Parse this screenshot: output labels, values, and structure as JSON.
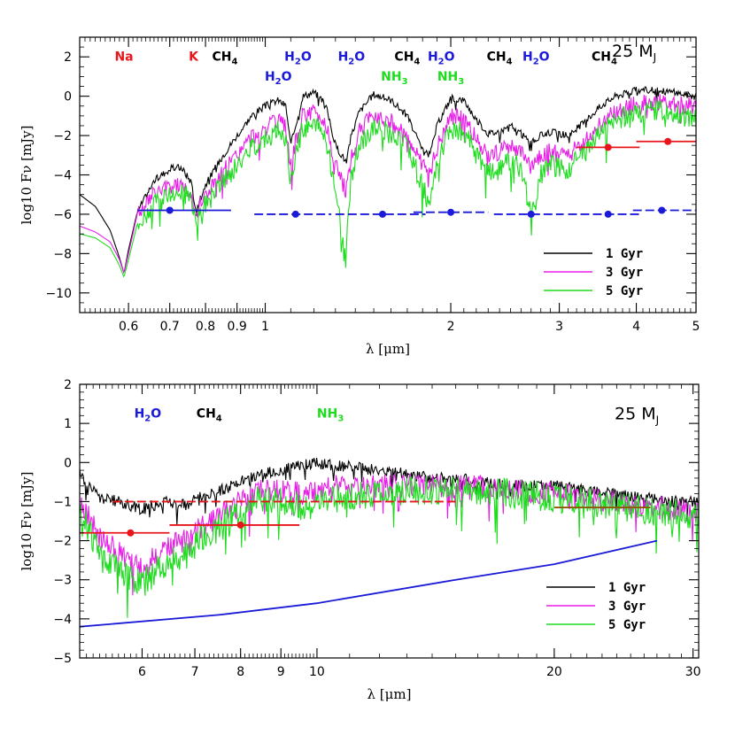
{
  "chart_data": [
    {
      "type": "line",
      "panel": "top",
      "xlabel": "λ [μm]",
      "ylabel": "log10 Fν [mJy]",
      "xscale": "log",
      "xlim": [
        0.5,
        5.0
      ],
      "ylim": [
        -11,
        3
      ],
      "x_ticks": [
        0.6,
        0.7,
        0.8,
        0.9,
        1,
        2,
        3,
        4,
        5
      ],
      "x_tick_labels": [
        "0.6",
        "0.7",
        "0.8",
        "0.9",
        "1",
        "2",
        "3",
        "4",
        "5"
      ],
      "y_ticks": [
        -10,
        -8,
        -6,
        -4,
        -2,
        0,
        2
      ],
      "y_tick_labels": [
        "−10",
        "−8",
        "−6",
        "−4",
        "−2",
        "0",
        "2"
      ],
      "mass_label": "25 M",
      "mass_sub": "J",
      "species": [
        {
          "text": "Na",
          "sub": "",
          "x": 0.59,
          "y": 1.8,
          "color": "#e8151a"
        },
        {
          "text": "K",
          "sub": "",
          "x": 0.765,
          "y": 1.8,
          "color": "#e8151a"
        },
        {
          "text": "CH",
          "sub": "4",
          "x": 0.86,
          "y": 1.8,
          "color": "#000000"
        },
        {
          "text": "H",
          "sub": "2",
          "tail": "O",
          "x": 1.05,
          "y": 0.8,
          "color": "#1a1ad8"
        },
        {
          "text": "H",
          "sub": "2",
          "tail": "O",
          "x": 1.13,
          "y": 1.8,
          "color": "#1a1ad8"
        },
        {
          "text": "H",
          "sub": "2",
          "tail": "O",
          "x": 1.38,
          "y": 1.8,
          "color": "#1a1ad8"
        },
        {
          "text": "NH",
          "sub": "3",
          "x": 1.62,
          "y": 0.8,
          "color": "#1edc1e"
        },
        {
          "text": "CH",
          "sub": "4",
          "x": 1.7,
          "y": 1.8,
          "color": "#000000"
        },
        {
          "text": "H",
          "sub": "2",
          "tail": "O",
          "x": 1.93,
          "y": 1.8,
          "color": "#1a1ad8"
        },
        {
          "text": "NH",
          "sub": "3",
          "x": 2.0,
          "y": 0.8,
          "color": "#1edc1e"
        },
        {
          "text": "CH",
          "sub": "4",
          "x": 2.4,
          "y": 1.8,
          "color": "#000000"
        },
        {
          "text": "H",
          "sub": "2",
          "tail": "O",
          "x": 2.75,
          "y": 1.8,
          "color": "#1a1ad8"
        },
        {
          "text": "CH",
          "sub": "4",
          "x": 3.55,
          "y": 1.8,
          "color": "#000000"
        }
      ],
      "legend": [
        {
          "label": "1 Gyr",
          "color": "#000000"
        },
        {
          "label": "3 Gyr",
          "color": "#e81ee8"
        },
        {
          "label": "5 Gyr",
          "color": "#1edc1e"
        }
      ],
      "series": [
        {
          "name": "1 Gyr",
          "color": "#000000",
          "x": [
            0.5,
            0.53,
            0.56,
            0.58,
            0.59,
            0.6,
            0.62,
            0.66,
            0.7,
            0.73,
            0.76,
            0.77,
            0.8,
            0.85,
            0.9,
            0.95,
            1.0,
            1.05,
            1.08,
            1.1,
            1.12,
            1.15,
            1.2,
            1.25,
            1.3,
            1.35,
            1.38,
            1.42,
            1.5,
            1.6,
            1.7,
            1.8,
            1.85,
            1.9,
            2.0,
            2.1,
            2.2,
            2.3,
            2.4,
            2.5,
            2.6,
            2.7,
            2.8,
            2.9,
            3.0,
            3.1,
            3.3,
            3.5,
            3.7,
            4.0,
            4.3,
            4.6,
            5.0
          ],
          "y": [
            -5.0,
            -5.6,
            -6.8,
            -8.2,
            -9.0,
            -7.8,
            -5.9,
            -4.3,
            -3.7,
            -3.6,
            -4.4,
            -5.8,
            -4.5,
            -3.1,
            -2.0,
            -1.0,
            -0.5,
            -0.2,
            -0.5,
            -2.5,
            -1.5,
            0.0,
            0.2,
            -0.3,
            -2.5,
            -3.3,
            -2.0,
            -0.8,
            0.1,
            -0.2,
            -1.0,
            -2.8,
            -3.0,
            -1.5,
            -0.1,
            -0.2,
            -1.2,
            -1.9,
            -1.8,
            -1.5,
            -1.9,
            -2.4,
            -2.0,
            -1.8,
            -1.9,
            -2.0,
            -1.3,
            -0.5,
            0.0,
            0.3,
            0.3,
            0.2,
            0.0
          ]
        },
        {
          "name": "3 Gyr",
          "color": "#e81ee8",
          "x": [
            0.5,
            0.53,
            0.56,
            0.58,
            0.59,
            0.6,
            0.62,
            0.66,
            0.7,
            0.73,
            0.76,
            0.77,
            0.8,
            0.85,
            0.9,
            0.95,
            1.0,
            1.05,
            1.08,
            1.1,
            1.12,
            1.15,
            1.2,
            1.25,
            1.3,
            1.35,
            1.38,
            1.42,
            1.5,
            1.6,
            1.7,
            1.8,
            1.85,
            1.9,
            2.0,
            2.1,
            2.2,
            2.3,
            2.4,
            2.5,
            2.6,
            2.7,
            2.8,
            2.9,
            3.0,
            3.1,
            3.3,
            3.5,
            3.7,
            4.0,
            4.3,
            4.6,
            5.0
          ],
          "y": [
            -6.6,
            -6.9,
            -7.4,
            -8.3,
            -9.0,
            -8.0,
            -6.0,
            -5.0,
            -4.6,
            -4.5,
            -4.8,
            -6.0,
            -5.0,
            -3.9,
            -3.0,
            -2.1,
            -1.6,
            -1.3,
            -1.6,
            -3.5,
            -2.4,
            -1.0,
            -0.8,
            -1.3,
            -3.5,
            -4.8,
            -3.2,
            -1.8,
            -0.9,
            -1.3,
            -2.0,
            -3.6,
            -3.8,
            -2.6,
            -1.0,
            -1.1,
            -2.2,
            -3.0,
            -2.8,
            -2.6,
            -2.9,
            -3.6,
            -3.0,
            -2.8,
            -2.9,
            -3.0,
            -2.3,
            -1.4,
            -0.8,
            -0.4,
            -0.3,
            -0.4,
            -0.5
          ]
        },
        {
          "name": "5 Gyr",
          "color": "#1edc1e",
          "x": [
            0.5,
            0.53,
            0.56,
            0.58,
            0.59,
            0.6,
            0.62,
            0.66,
            0.7,
            0.73,
            0.76,
            0.77,
            0.8,
            0.85,
            0.9,
            0.95,
            1.0,
            1.05,
            1.08,
            1.1,
            1.12,
            1.15,
            1.2,
            1.25,
            1.3,
            1.35,
            1.38,
            1.42,
            1.5,
            1.6,
            1.7,
            1.8,
            1.85,
            1.9,
            2.0,
            2.1,
            2.2,
            2.3,
            2.4,
            2.5,
            2.6,
            2.7,
            2.8,
            2.9,
            3.0,
            3.1,
            3.3,
            3.5,
            3.7,
            4.0,
            4.3,
            4.6,
            5.0
          ],
          "y": [
            -7.0,
            -7.2,
            -7.7,
            -8.6,
            -9.2,
            -8.3,
            -6.5,
            -5.5,
            -5.0,
            -4.9,
            -5.2,
            -6.2,
            -5.5,
            -4.4,
            -3.6,
            -2.6,
            -2.1,
            -1.8,
            -2.1,
            -4.6,
            -3.0,
            -1.6,
            -1.4,
            -1.9,
            -4.6,
            -8.3,
            -4.0,
            -2.5,
            -1.5,
            -1.9,
            -2.6,
            -4.6,
            -5.5,
            -3.4,
            -1.6,
            -1.8,
            -3.0,
            -3.9,
            -3.7,
            -3.3,
            -3.6,
            -6.1,
            -4.0,
            -3.5,
            -3.6,
            -3.7,
            -2.9,
            -1.8,
            -1.2,
            -0.8,
            -0.7,
            -0.9,
            -1.1
          ]
        }
      ],
      "photometry": [
        {
          "color": "#1a1ad8",
          "dash": false,
          "x": 0.7,
          "xmin": 0.62,
          "xmax": 0.88,
          "y": -5.8
        },
        {
          "color": "#1a1ad8",
          "dash": true,
          "x": 1.12,
          "xmin": 0.96,
          "xmax": 1.28,
          "y": -6.0
        },
        {
          "color": "#1a1ad8",
          "dash": true,
          "x": 1.55,
          "xmin": 1.3,
          "xmax": 1.82,
          "y": -6.0
        },
        {
          "color": "#1a1ad8",
          "dash": true,
          "x": 2.0,
          "xmin": 1.74,
          "xmax": 2.3,
          "y": -5.9
        },
        {
          "color": "#1a1ad8",
          "dash": true,
          "x": 2.7,
          "xmin": 2.35,
          "xmax": 3.05,
          "y": -6.0
        },
        {
          "color": "#1a1ad8",
          "dash": true,
          "x": 3.6,
          "xmin": 3.1,
          "xmax": 4.05,
          "y": -6.0
        },
        {
          "color": "#1a1ad8",
          "dash": true,
          "x": 4.4,
          "xmin": 3.95,
          "xmax": 5.0,
          "y": -5.8
        },
        {
          "color": "#e8151a",
          "dash": false,
          "x": 3.6,
          "xmin": 3.2,
          "xmax": 4.05,
          "y": -2.6
        },
        {
          "color": "#e8151a",
          "dash": false,
          "x": 4.5,
          "xmin": 4.0,
          "xmax": 5.0,
          "y": -2.3
        }
      ]
    },
    {
      "type": "line",
      "panel": "bottom",
      "xlabel": "λ [μm]",
      "ylabel": "log10 Fν [mJy]",
      "xscale": "log",
      "xlim": [
        5.0,
        30.5
      ],
      "ylim": [
        -5,
        2
      ],
      "x_ticks": [
        6,
        7,
        8,
        9,
        10,
        20,
        30
      ],
      "x_tick_labels": [
        "6",
        "7",
        "8",
        "9",
        "10",
        "20",
        "30"
      ],
      "y_ticks": [
        -5,
        -4,
        -3,
        -2,
        -1,
        0,
        1,
        2
      ],
      "y_tick_labels": [
        "−5",
        "−4",
        "−3",
        "−2",
        "−1",
        "0",
        "1",
        "2"
      ],
      "mass_label": "25 M",
      "mass_sub": "J",
      "species": [
        {
          "text": "H",
          "sub": "2",
          "tail": "O",
          "x": 6.1,
          "y": 1.15,
          "color": "#1a1ad8"
        },
        {
          "text": "CH",
          "sub": "4",
          "x": 7.3,
          "y": 1.15,
          "color": "#000000"
        },
        {
          "text": "NH",
          "sub": "3",
          "x": 10.4,
          "y": 1.15,
          "color": "#1edc1e"
        }
      ],
      "legend": [
        {
          "label": "1 Gyr",
          "color": "#000000"
        },
        {
          "label": "3 Gyr",
          "color": "#e81ee8"
        },
        {
          "label": "5 Gyr",
          "color": "#1edc1e"
        }
      ],
      "series": [
        {
          "name": "1 Gyr",
          "color": "#000000",
          "x": [
            5.0,
            5.3,
            5.6,
            6.0,
            6.4,
            6.8,
            7.2,
            7.6,
            8.0,
            8.5,
            9.0,
            9.5,
            10.0,
            10.5,
            11.0,
            12.0,
            13.0,
            14.0,
            15.0,
            16.0,
            18.0,
            20.0,
            22.0,
            24.0,
            26.0,
            28.0,
            30.5
          ],
          "y": [
            -0.3,
            -0.9,
            -1.0,
            -1.2,
            -1.0,
            -1.1,
            -0.8,
            -0.7,
            -0.5,
            -0.3,
            -0.2,
            -0.1,
            0.0,
            -0.1,
            -0.1,
            -0.2,
            -0.3,
            -0.4,
            -0.4,
            -0.5,
            -0.6,
            -0.6,
            -0.7,
            -0.8,
            -0.9,
            -1.0,
            -1.0
          ]
        },
        {
          "name": "3 Gyr",
          "color": "#e81ee8",
          "x": [
            5.0,
            5.3,
            5.6,
            6.0,
            6.4,
            6.8,
            7.2,
            7.6,
            8.0,
            8.5,
            9.0,
            9.5,
            10.0,
            10.5,
            11.0,
            12.0,
            13.0,
            14.0,
            15.0,
            16.0,
            18.0,
            20.0,
            22.0,
            24.0,
            26.0,
            28.0,
            30.5
          ],
          "y": [
            -1.0,
            -1.9,
            -2.3,
            -2.7,
            -2.2,
            -2.0,
            -1.6,
            -1.3,
            -1.0,
            -0.7,
            -0.7,
            -0.8,
            -0.8,
            -0.6,
            -0.7,
            -0.6,
            -0.6,
            -0.6,
            -0.6,
            -0.6,
            -0.7,
            -0.8,
            -0.9,
            -1.0,
            -1.1,
            -1.2,
            -1.3
          ]
        },
        {
          "name": "5 Gyr",
          "color": "#1edc1e",
          "x": [
            5.0,
            5.3,
            5.6,
            6.0,
            6.4,
            6.8,
            7.2,
            7.6,
            8.0,
            8.5,
            9.0,
            9.5,
            10.0,
            10.5,
            11.0,
            12.0,
            13.0,
            14.0,
            15.0,
            16.0,
            18.0,
            20.0,
            22.0,
            24.0,
            26.0,
            28.0,
            30.5
          ],
          "y": [
            -1.2,
            -2.3,
            -2.8,
            -3.1,
            -2.6,
            -2.4,
            -1.9,
            -1.6,
            -1.2,
            -0.9,
            -1.0,
            -1.1,
            -1.1,
            -0.9,
            -0.9,
            -0.8,
            -0.7,
            -0.7,
            -0.7,
            -0.7,
            -0.8,
            -0.9,
            -1.0,
            -1.1,
            -1.2,
            -1.3,
            -1.4
          ]
        },
        {
          "name": "",
          "color": "#1a1ad8",
          "sensitivity": true,
          "x": [
            5.0,
            7.5,
            10.0,
            15.0,
            20.0,
            27.0
          ],
          "y": [
            -4.2,
            -3.9,
            -3.6,
            -3.0,
            -2.6,
            -2.0
          ]
        }
      ],
      "photometry": [
        {
          "color": "#e8151a",
          "dash": false,
          "x": 5.8,
          "xmin": 5.0,
          "xmax": 6.5,
          "y": -1.8
        },
        {
          "color": "#e8151a",
          "dash": false,
          "x": 8.0,
          "xmin": 6.5,
          "xmax": 9.5,
          "y": -1.6
        },
        {
          "color": "#e8151a",
          "dash": true,
          "x": null,
          "xmin": 5.5,
          "xmax": 15.0,
          "y": -1.0
        },
        {
          "color": "#8b5a00",
          "dash": false,
          "x": null,
          "xmin": 20.0,
          "xmax": 26.5,
          "y": -1.15
        }
      ]
    }
  ]
}
